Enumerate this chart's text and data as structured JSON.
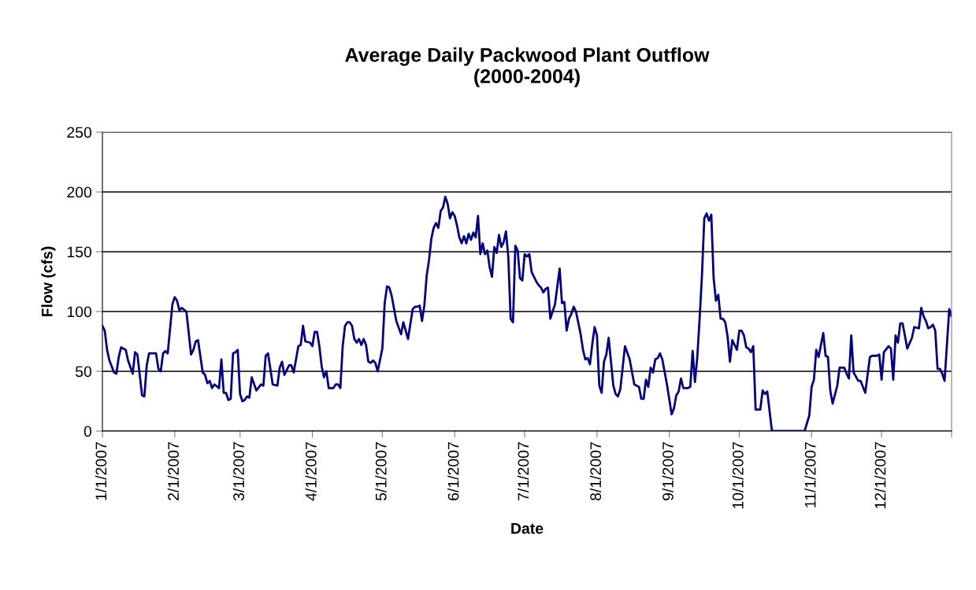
{
  "chart_data": {
    "type": "line",
    "title": "Average Daily Packwood Plant Outflow\n(2000-2004)",
    "xlabel": "Date",
    "ylabel": "Flow (cfs)",
    "x": [
      "2007-01-01",
      "2007-01-02",
      "2007-01-03",
      "2007-01-04",
      "2007-01-06",
      "2007-01-07",
      "2007-01-08",
      "2007-01-09",
      "2007-01-11",
      "2007-01-12",
      "2007-01-14",
      "2007-01-15",
      "2007-01-16",
      "2007-01-18",
      "2007-01-19",
      "2007-01-20",
      "2007-01-21",
      "2007-01-24",
      "2007-01-25",
      "2007-01-26",
      "2007-01-27",
      "2007-01-28",
      "2007-01-29",
      "2007-01-31",
      "2007-02-01",
      "2007-02-02",
      "2007-02-03",
      "2007-02-04",
      "2007-02-06",
      "2007-02-08",
      "2007-02-09",
      "2007-02-10",
      "2007-02-11",
      "2007-02-13",
      "2007-02-14",
      "2007-02-15",
      "2007-02-16",
      "2007-02-17",
      "2007-02-18",
      "2007-02-20",
      "2007-02-21",
      "2007-02-22",
      "2007-02-23",
      "2007-02-24",
      "2007-02-25",
      "2007-02-26",
      "2007-02-27",
      "2007-02-28",
      "2007-03-01",
      "2007-03-02",
      "2007-03-03",
      "2007-03-04",
      "2007-03-05",
      "2007-03-06",
      "2007-03-08",
      "2007-03-10",
      "2007-03-11",
      "2007-03-12",
      "2007-03-13",
      "2007-03-15",
      "2007-03-17",
      "2007-03-18",
      "2007-03-19",
      "2007-03-20",
      "2007-03-22",
      "2007-03-23",
      "2007-03-24",
      "2007-03-26",
      "2007-03-27",
      "2007-03-28",
      "2007-03-29",
      "2007-03-31",
      "2007-04-01",
      "2007-04-02",
      "2007-04-03",
      "2007-04-04",
      "2007-04-05",
      "2007-04-06",
      "2007-04-07",
      "2007-04-08",
      "2007-04-10",
      "2007-04-11",
      "2007-04-12",
      "2007-04-13",
      "2007-04-14",
      "2007-04-15",
      "2007-04-16",
      "2007-04-17",
      "2007-04-18",
      "2007-04-19",
      "2007-04-20",
      "2007-04-21",
      "2007-04-22",
      "2007-04-23",
      "2007-04-24",
      "2007-04-25",
      "2007-04-26",
      "2007-04-27",
      "2007-04-28",
      "2007-04-29",
      "2007-05-01",
      "2007-05-02",
      "2007-05-03",
      "2007-05-04",
      "2007-05-05",
      "2007-05-07",
      "2007-05-09",
      "2007-05-10",
      "2007-05-12",
      "2007-05-14",
      "2007-05-15",
      "2007-05-16",
      "2007-05-17",
      "2007-05-18",
      "2007-05-19",
      "2007-05-20",
      "2007-05-21",
      "2007-05-22",
      "2007-05-23",
      "2007-05-24",
      "2007-05-25",
      "2007-05-26",
      "2007-05-27",
      "2007-05-28",
      "2007-05-29",
      "2007-05-30",
      "2007-05-31",
      "2007-06-01",
      "2007-06-02",
      "2007-06-03",
      "2007-06-04",
      "2007-06-05",
      "2007-06-06",
      "2007-06-07",
      "2007-06-08",
      "2007-06-09",
      "2007-06-10",
      "2007-06-11",
      "2007-06-12",
      "2007-06-13",
      "2007-06-14",
      "2007-06-15",
      "2007-06-16",
      "2007-06-17",
      "2007-06-18",
      "2007-06-19",
      "2007-06-20",
      "2007-06-21",
      "2007-06-22",
      "2007-06-23",
      "2007-06-24",
      "2007-06-25",
      "2007-06-26",
      "2007-06-27",
      "2007-06-28",
      "2007-06-29",
      "2007-06-30",
      "2007-07-01",
      "2007-07-02",
      "2007-07-03",
      "2007-07-04",
      "2007-07-06",
      "2007-07-07",
      "2007-07-08",
      "2007-07-09",
      "2007-07-10",
      "2007-07-11",
      "2007-07-12",
      "2007-07-14",
      "2007-07-16",
      "2007-07-17",
      "2007-07-18",
      "2007-07-19",
      "2007-07-20",
      "2007-07-21",
      "2007-07-22",
      "2007-07-23",
      "2007-07-25",
      "2007-07-26",
      "2007-07-27",
      "2007-07-28",
      "2007-07-29",
      "2007-07-30",
      "2007-07-31",
      "2007-08-01",
      "2007-08-02",
      "2007-08-03",
      "2007-08-04",
      "2007-08-05",
      "2007-08-06",
      "2007-08-08",
      "2007-08-09",
      "2007-08-10",
      "2007-08-11",
      "2007-08-13",
      "2007-08-15",
      "2007-08-17",
      "2007-08-19",
      "2007-08-20",
      "2007-08-21",
      "2007-08-22",
      "2007-08-23",
      "2007-08-24",
      "2007-08-25",
      "2007-08-26",
      "2007-08-27",
      "2007-08-28",
      "2007-08-29",
      "2007-08-31",
      "2007-09-02",
      "2007-09-03",
      "2007-09-04",
      "2007-09-05",
      "2007-09-06",
      "2007-09-07",
      "2007-09-09",
      "2007-09-10",
      "2007-09-11",
      "2007-09-12",
      "2007-09-13",
      "2007-09-14",
      "2007-09-15",
      "2007-09-16",
      "2007-09-17",
      "2007-09-18",
      "2007-09-19",
      "2007-09-20",
      "2007-09-21",
      "2007-09-22",
      "2007-09-23",
      "2007-09-24",
      "2007-09-25",
      "2007-09-26",
      "2007-09-27",
      "2007-09-28",
      "2007-09-30",
      "2007-10-01",
      "2007-10-02",
      "2007-10-03",
      "2007-10-04",
      "2007-10-05",
      "2007-10-06",
      "2007-10-07",
      "2007-10-08",
      "2007-10-10",
      "2007-10-11",
      "2007-10-12",
      "2007-10-13",
      "2007-10-15",
      "2007-10-29",
      "2007-10-31",
      "2007-11-01",
      "2007-11-02",
      "2007-11-03",
      "2007-11-04",
      "2007-11-06",
      "2007-11-07",
      "2007-11-08",
      "2007-11-09",
      "2007-11-10",
      "2007-11-12",
      "2007-11-13",
      "2007-11-15",
      "2007-11-16",
      "2007-11-17",
      "2007-11-18",
      "2007-11-19",
      "2007-11-21",
      "2007-11-22",
      "2007-11-24",
      "2007-11-26",
      "2007-11-27",
      "2007-11-28",
      "2007-11-29",
      "2007-11-30",
      "2007-12-01",
      "2007-12-02",
      "2007-12-04",
      "2007-12-05",
      "2007-12-06",
      "2007-12-07",
      "2007-12-08",
      "2007-12-09",
      "2007-12-10",
      "2007-12-11",
      "2007-12-12",
      "2007-12-14",
      "2007-12-15",
      "2007-12-17",
      "2007-12-18",
      "2007-12-19",
      "2007-12-20",
      "2007-12-21",
      "2007-12-22",
      "2007-12-23",
      "2007-12-24",
      "2007-12-25",
      "2007-12-26",
      "2007-12-27",
      "2007-12-28",
      "2007-12-30",
      "2007-12-31"
    ],
    "series": [
      {
        "color": "#000080",
        "values": [
          88,
          84,
          68,
          59,
          49,
          48,
          62,
          70,
          68,
          59,
          48,
          66,
          64,
          30,
          29,
          55,
          65,
          65,
          52,
          50,
          65,
          67,
          65,
          106,
          112,
          109,
          101,
          103,
          100,
          64,
          68,
          75,
          76,
          49,
          47,
          40,
          42,
          36,
          39,
          36,
          60,
          32,
          32,
          26,
          27,
          65,
          66,
          68,
          31,
          25,
          26,
          29,
          28,
          45,
          34,
          39,
          38,
          63,
          65,
          39,
          38,
          53,
          58,
          47,
          55,
          55,
          49,
          71,
          72,
          88,
          75,
          74,
          71,
          83,
          83,
          71,
          54,
          45,
          50,
          36,
          36,
          39,
          39,
          36,
          71,
          88,
          91,
          91,
          88,
          77,
          74,
          77,
          72,
          77,
          72,
          58,
          57,
          59,
          57,
          50,
          69,
          107,
          121,
          120,
          113,
          92,
          81,
          91,
          77,
          102,
          104,
          104,
          105,
          92,
          105,
          130,
          143,
          161,
          170,
          174,
          170,
          184,
          187,
          196,
          190,
          178,
          183,
          180,
          172,
          162,
          157,
          163,
          157,
          165,
          160,
          166,
          162,
          180,
          148,
          157,
          148,
          151,
          137,
          129,
          154,
          149,
          164,
          154,
          158,
          167,
          145,
          94,
          91,
          155,
          151,
          128,
          126,
          148,
          146,
          148,
          133,
          125,
          122,
          120,
          116,
          119,
          120,
          94,
          106,
          136,
          107,
          108,
          84,
          94,
          98,
          104,
          100,
          81,
          68,
          60,
          61,
          56,
          73,
          87,
          80,
          38,
          32,
          58,
          64,
          78,
          38,
          31,
          29,
          35,
          71,
          60,
          39,
          37,
          27,
          27,
          43,
          37,
          53,
          49,
          60,
          61,
          65,
          60,
          39,
          14,
          19,
          30,
          33,
          44,
          36,
          36,
          37,
          67,
          41,
          62,
          94,
          130,
          178,
          182,
          176,
          181,
          128,
          109,
          114,
          94,
          94,
          91,
          79,
          58,
          76,
          68,
          84,
          84,
          80,
          70,
          69,
          66,
          71,
          18,
          18,
          34,
          31,
          33,
          0,
          0,
          13,
          37,
          43,
          68,
          62,
          82,
          63,
          62,
          34,
          23,
          38,
          53,
          53,
          48,
          44,
          80,
          49,
          42,
          42,
          32,
          62,
          63,
          63,
          63,
          64,
          43,
          66,
          71,
          69,
          43,
          80,
          74,
          90,
          90,
          80,
          69,
          78,
          87,
          86,
          103,
          96,
          92,
          86,
          87,
          89,
          84,
          52,
          52,
          48,
          42,
          102,
          96
        ]
      }
    ],
    "xlim": [
      "2007-01-01",
      "2007-12-31"
    ],
    "xticks": [
      {
        "value": "2007-01-01",
        "label": "1/1/2007"
      },
      {
        "value": "2007-02-01",
        "label": "2/1/2007"
      },
      {
        "value": "2007-03-01",
        "label": "3/1/2007"
      },
      {
        "value": "2007-04-01",
        "label": "4/1/2007"
      },
      {
        "value": "2007-05-01",
        "label": "5/1/2007"
      },
      {
        "value": "2007-06-01",
        "label": "6/1/2007"
      },
      {
        "value": "2007-07-01",
        "label": "7/1/2007"
      },
      {
        "value": "2007-08-01",
        "label": "8/1/2007"
      },
      {
        "value": "2007-09-01",
        "label": "9/1/2007"
      },
      {
        "value": "2007-10-01",
        "label": "10/1/2007"
      },
      {
        "value": "2007-11-01",
        "label": "11/1/2007"
      },
      {
        "value": "2007-12-01",
        "label": "12/1/2007"
      },
      {
        "value": "2007-12-31",
        "label": null
      }
    ],
    "ylim": [
      0,
      250
    ],
    "yticks": [
      0,
      50,
      100,
      150,
      200,
      250
    ],
    "grid": "y",
    "legend": false,
    "marker": "none",
    "line_style": "solid"
  }
}
